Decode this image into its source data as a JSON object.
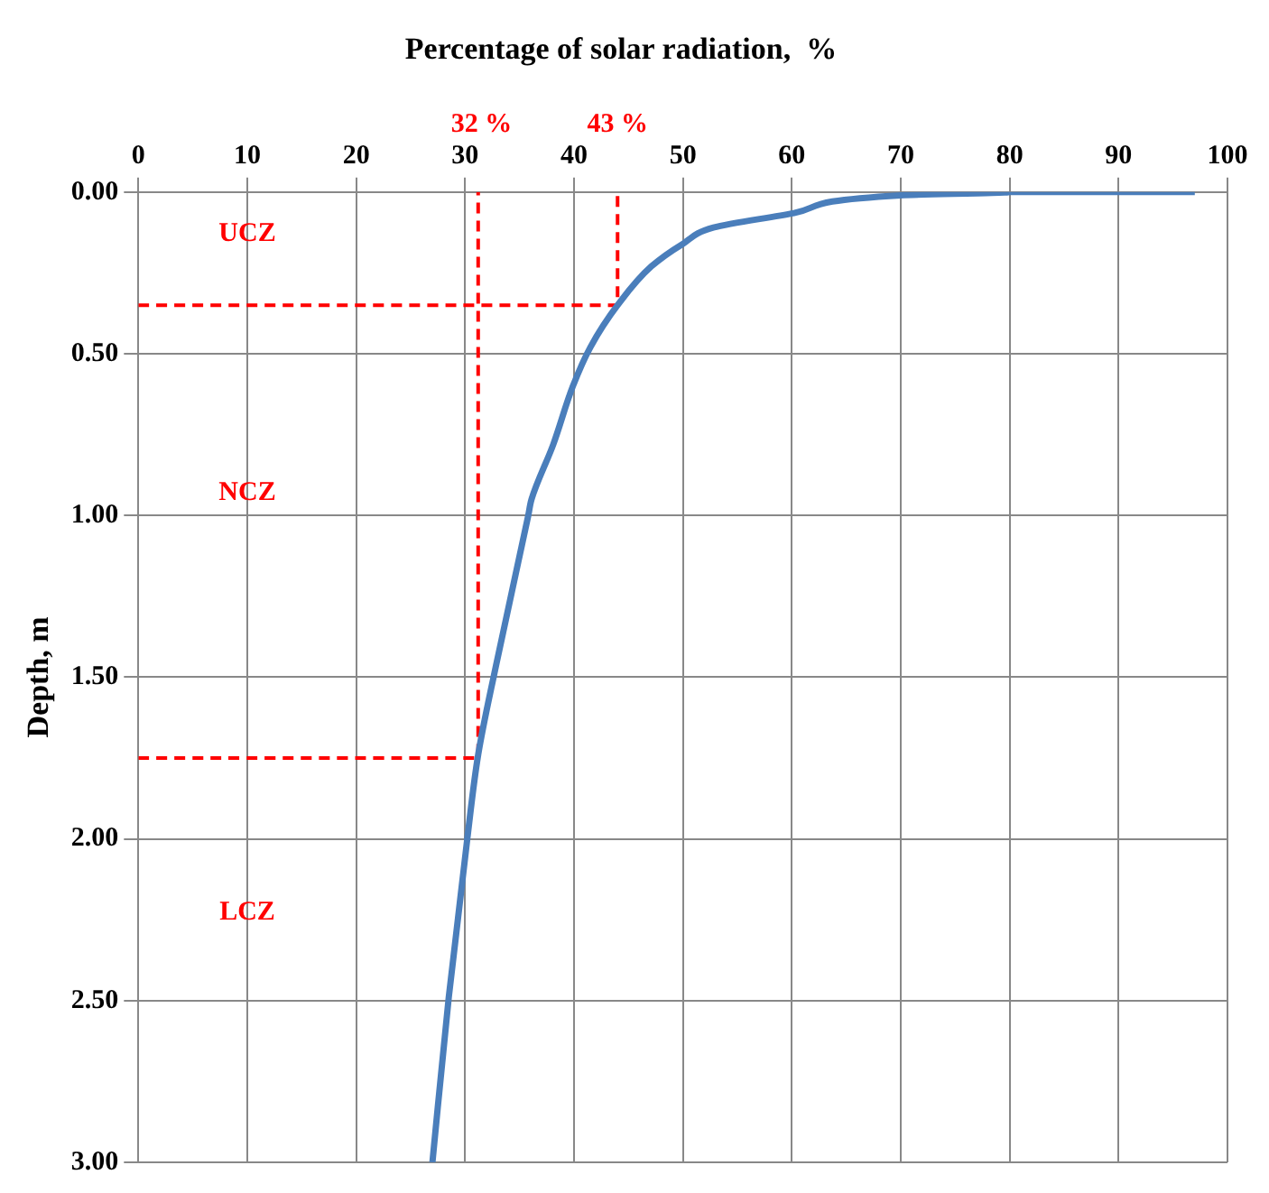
{
  "chart_data": {
    "type": "line",
    "xlabel": "Percentage of solar radiation,  %",
    "ylabel": "Depth, m",
    "xlim": [
      0,
      100
    ],
    "xticks": [
      0,
      10,
      20,
      30,
      40,
      50,
      60,
      70,
      80,
      90,
      100
    ],
    "ylim": [
      3,
      0
    ],
    "yticks": [
      {
        "value": 0,
        "label": "0.00"
      },
      {
        "value": 0.5,
        "label": "0.50"
      },
      {
        "value": 1,
        "label": "1.00"
      },
      {
        "value": 1.5,
        "label": "1.50"
      },
      {
        "value": 2,
        "label": "2.00"
      },
      {
        "value": 2.5,
        "label": "2.50"
      },
      {
        "value": 3,
        "label": "3.00"
      }
    ],
    "grid": true,
    "legend": false,
    "series": [
      {
        "type": "line",
        "color": "#4a7ebb",
        "line_style": "solid",
        "x": [
          97,
          80,
          70,
          60.2,
          52.8,
          50,
          47.1,
          44,
          41.5,
          39.9,
          38.1,
          36.1,
          35.8,
          32.8,
          31.2,
          30.2,
          28.5,
          27
        ],
        "values": [
          0,
          0,
          0.01,
          0.065,
          0.11,
          0.16,
          0.23,
          0.35,
          0.48,
          0.6,
          0.78,
          0.95,
          1,
          1.47,
          1.74,
          2,
          2.49,
          3
        ]
      },
      {
        "type": "line",
        "color": "#ff0000",
        "line_style": "dashed",
        "x": [
          0,
          44,
          44
        ],
        "values": [
          0.35,
          0.35,
          0
        ]
      },
      {
        "type": "line",
        "color": "#ff0000",
        "line_style": "dashed",
        "x": [
          0,
          31.2,
          31.2
        ],
        "values": [
          1.75,
          1.75,
          0
        ]
      }
    ],
    "annotations": [
      "32 %",
      "43 %",
      "UCZ",
      "NCZ",
      "LCZ"
    ]
  }
}
